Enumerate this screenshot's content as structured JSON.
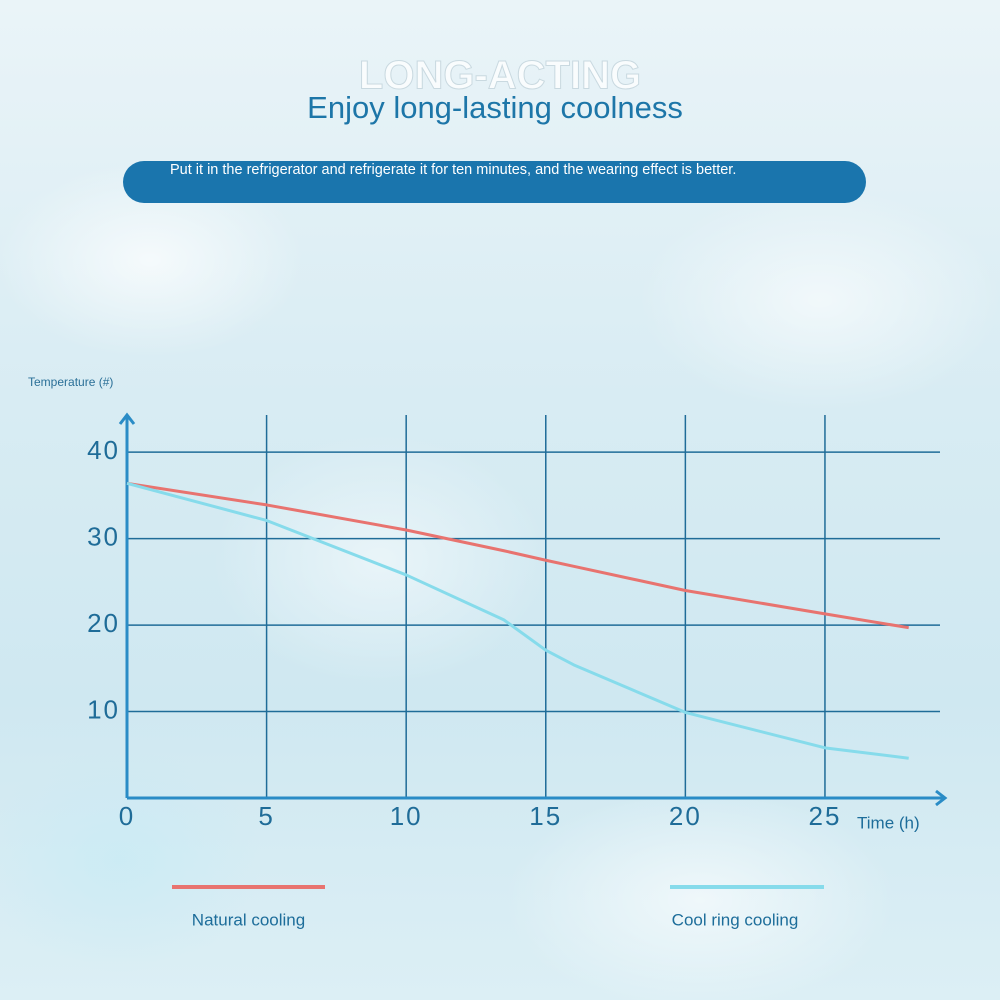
{
  "chart_data": {
    "type": "line",
    "background_text": "LONG-ACTING",
    "title": "Enjoy long-lasting coolness",
    "subtitle": "Put it in the refrigerator and refrigerate it for ten minutes, and the wearing effect is better.",
    "ylabel": "Temperature (#)",
    "xlabel": "Time (h)",
    "x": [
      0,
      5,
      10,
      13.5,
      15,
      16,
      20,
      25,
      28
    ],
    "series": [
      {
        "name": "Natural cooling",
        "color": "#e8736f",
        "values": [
          36.4,
          33.9,
          31,
          28.6,
          27.5,
          26.8,
          24,
          21.3,
          19.7
        ]
      },
      {
        "name": "Cool ring cooling",
        "color": "#86dbeb",
        "values": [
          36.4,
          32.1,
          25.8,
          20.6,
          17.1,
          15.4,
          9.9,
          5.8,
          4.6
        ]
      }
    ],
    "xlim": [
      0,
      29.3
    ],
    "ylim": [
      0,
      44.3
    ],
    "xticks": [
      0,
      5,
      10,
      15,
      20,
      25
    ],
    "yticks": [
      10,
      20,
      30,
      40
    ],
    "grid": true,
    "legend": "bottom"
  }
}
